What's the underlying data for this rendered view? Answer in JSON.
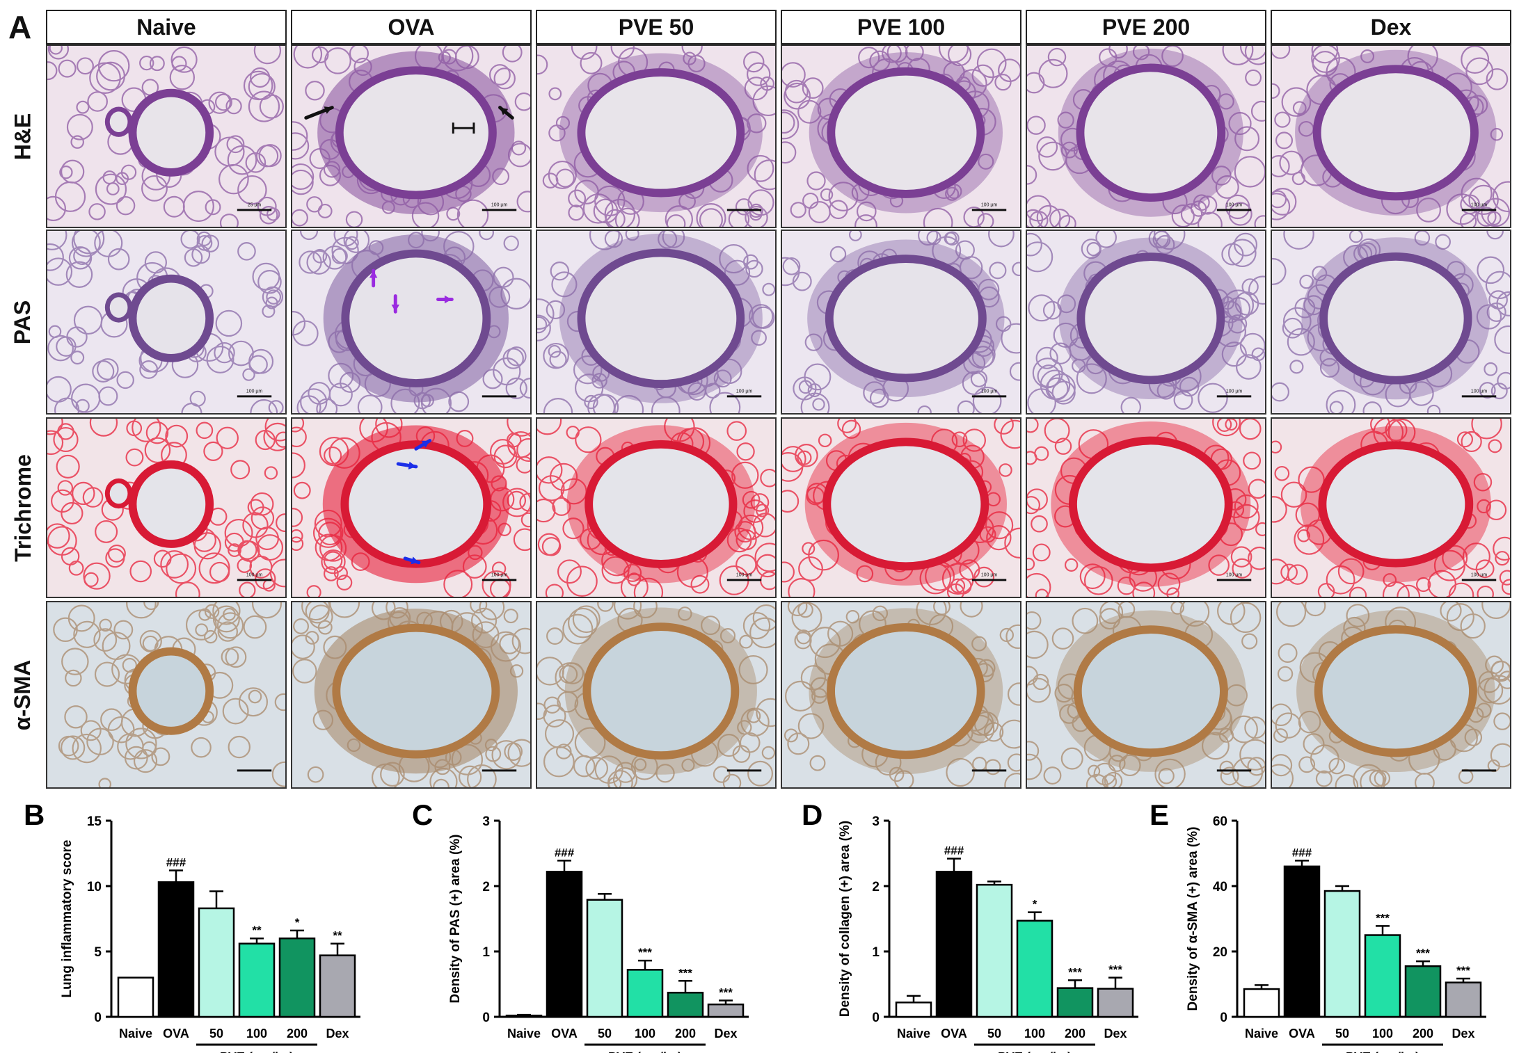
{
  "figure": {
    "panel_a_letter": "A",
    "columns": [
      "Naive",
      "OVA",
      "PVE 50",
      "PVE 100",
      "PVE 200",
      "Dex"
    ],
    "rows": [
      "H&E",
      "PAS",
      "Trichrome",
      "α-SMA"
    ],
    "ova_he_marker": "H",
    "stain_colors": {
      "H&E": {
        "bg": "#efe3ec",
        "tissue": "#8e5aa3",
        "wall": "#7b3f94",
        "lumen": "#e8e4ea"
      },
      "PAS": {
        "bg": "#ece6f0",
        "tissue": "#8a6aa8",
        "wall": "#6f4a90",
        "lumen": "#e6e3ea"
      },
      "Trichrome": {
        "bg": "#f2e4e8",
        "tissue": "#e8203a",
        "wall": "#d81a35",
        "lumen": "#e4e4ea"
      },
      "α-SMA": {
        "bg": "#d9e0e6",
        "tissue": "#a98a6c",
        "wall": "#b07a45",
        "lumen": "#c7d4dc"
      }
    },
    "scale_bar_labels": [
      [
        "25 µm",
        "100 µm",
        "",
        "100 µm",
        "100 µm",
        "100 µm"
      ],
      [
        "100 µm",
        "",
        "100 µm",
        "100 µm",
        "100 µm",
        "100 µm"
      ],
      [
        "100 µm",
        "100 µm",
        "100 µm",
        "100 µm",
        "100 µm",
        "100 µm"
      ],
      [
        "",
        "",
        "",
        "",
        "",
        ""
      ]
    ],
    "arrow_colors": {
      "he": "#111111",
      "pas": "#9a2be0",
      "trichrome": "#1b2ee8"
    }
  },
  "chart_data": [
    {
      "panel": "B",
      "type": "bar",
      "categories": [
        "Naive",
        "OVA",
        "50",
        "100",
        "200",
        "Dex"
      ],
      "values": [
        3.0,
        10.3,
        8.3,
        5.6,
        6.0,
        4.7
      ],
      "errors": [
        0,
        0.9,
        1.3,
        0.4,
        0.6,
        0.9
      ],
      "annotations": [
        "",
        "###",
        "",
        "**",
        "*",
        "**"
      ],
      "ylabel": "Lung inflammatory score",
      "xgroup_label": "PVE (mg/kg)",
      "ylim": [
        0,
        15
      ],
      "yticks": [
        "0",
        "5",
        "10",
        "15"
      ]
    },
    {
      "panel": "C",
      "type": "bar",
      "categories": [
        "Naive",
        "OVA",
        "50",
        "100",
        "200",
        "Dex"
      ],
      "values": [
        0.02,
        2.22,
        1.79,
        0.72,
        0.37,
        0.19
      ],
      "errors": [
        0.01,
        0.17,
        0.09,
        0.14,
        0.18,
        0.06
      ],
      "annotations": [
        "",
        "###",
        "",
        "***",
        "***",
        "***"
      ],
      "ylabel": "Density of PAS (+) area (%)",
      "xgroup_label": "PVE (mg/kg)",
      "ylim": [
        0,
        3
      ],
      "yticks": [
        "0",
        "1",
        "2",
        "3"
      ]
    },
    {
      "panel": "D",
      "type": "bar",
      "categories": [
        "Naive",
        "OVA",
        "50",
        "100",
        "200",
        "Dex"
      ],
      "values": [
        0.22,
        2.22,
        2.02,
        1.47,
        0.44,
        0.43
      ],
      "errors": [
        0.1,
        0.2,
        0.05,
        0.13,
        0.12,
        0.17
      ],
      "annotations": [
        "",
        "###",
        "",
        "*",
        "***",
        "***"
      ],
      "ylabel": "Density of collagen (+) area (%)",
      "xgroup_label": "PVE (mg/kg)",
      "ylim": [
        0,
        3
      ],
      "yticks": [
        "0",
        "1",
        "2",
        "3"
      ]
    },
    {
      "panel": "E",
      "type": "bar",
      "categories": [
        "Naive",
        "OVA",
        "50",
        "100",
        "200",
        "Dex"
      ],
      "values": [
        8.5,
        46.0,
        38.5,
        25.0,
        15.5,
        10.5
      ],
      "errors": [
        1.2,
        1.8,
        1.5,
        2.8,
        1.5,
        1.2
      ],
      "annotations": [
        "",
        "###",
        "",
        "***",
        "***",
        "***"
      ],
      "ylabel": "Density of α-SMA (+) area (%)",
      "xgroup_label": "PVE (mg/kg)",
      "ylim": [
        0,
        60
      ],
      "yticks": [
        "0",
        "20",
        "40",
        "60"
      ]
    }
  ],
  "bar_colors": [
    "#ffffff",
    "#000000",
    "#b6f5e4",
    "#22e0a6",
    "#119460",
    "#a8a8b0"
  ]
}
